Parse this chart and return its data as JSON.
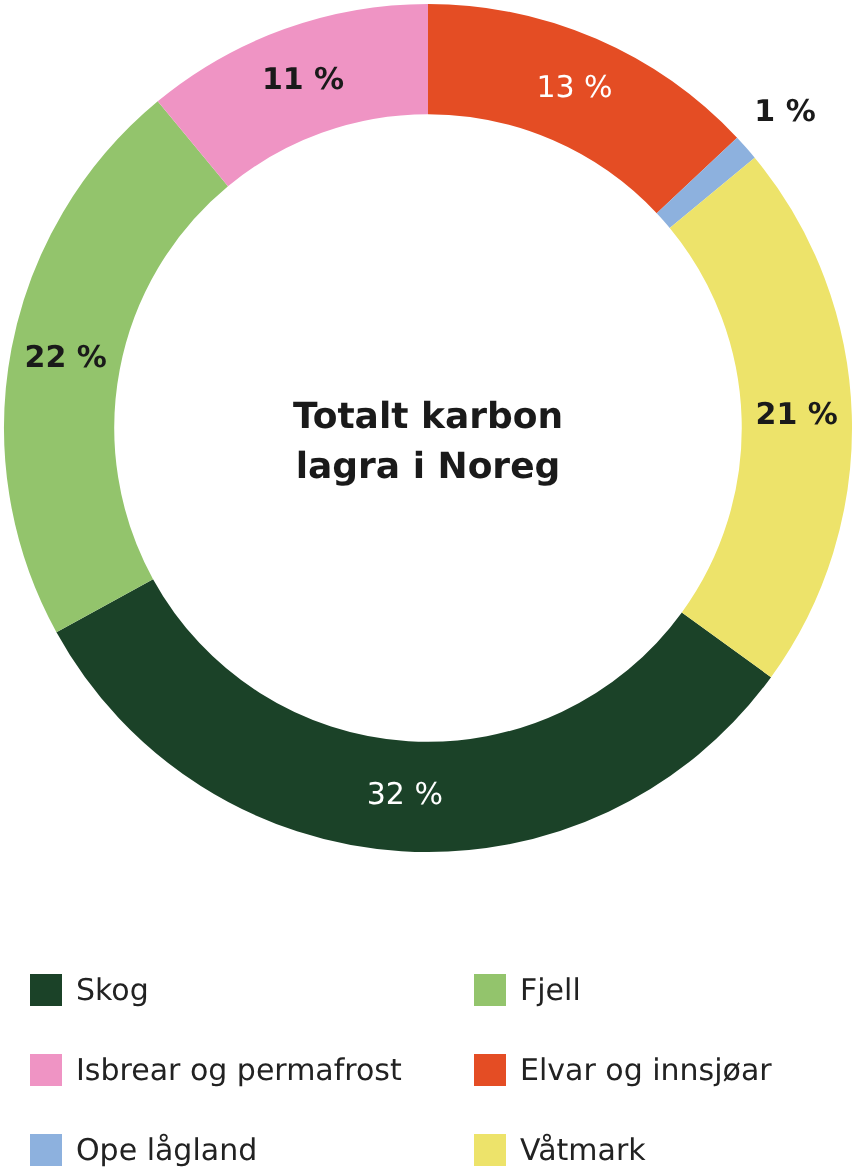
{
  "chart_data": {
    "type": "donut",
    "title": "Totalt karbon lagra i Noreg",
    "categories": [
      "Skog",
      "Fjell",
      "Isbrear og permafrost",
      "Elvar og innsjøar",
      "Ope lågland",
      "Våtmark"
    ],
    "values": [
      32,
      22,
      11,
      13,
      1,
      21
    ],
    "colors": [
      "#1b4228",
      "#93c46c",
      "#ef94c4",
      "#e44d24",
      "#8db1de",
      "#ede36a"
    ],
    "value_labels": [
      "32 %",
      "22 %",
      "11 %",
      "13 %",
      "1 %",
      "21 %"
    ],
    "legend": "bottom"
  }
}
